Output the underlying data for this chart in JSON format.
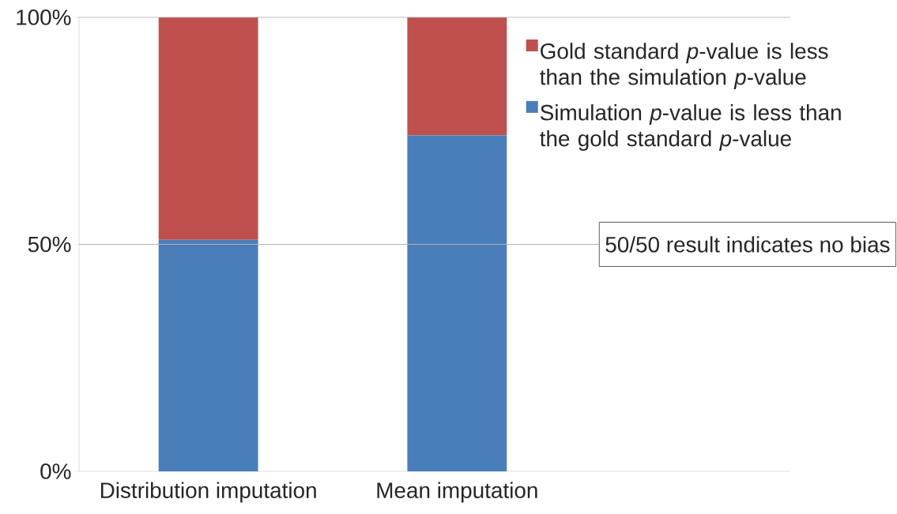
{
  "chart_data": {
    "type": "bar",
    "stacked": true,
    "categories": [
      "Distribution imputation",
      "Mean imputation"
    ],
    "series": [
      {
        "name": "Simulation *p*-value is less than the gold standard *p*-value",
        "color": "#4a7ebb",
        "values": [
          51,
          74
        ]
      },
      {
        "name": "Gold standard *p*-value is less than the simulation *p*-value",
        "color": "#c0504d",
        "values": [
          49,
          26
        ]
      }
    ],
    "ylim": [
      0,
      100
    ],
    "yticks": [
      {
        "value": 0,
        "label": "0%"
      },
      {
        "value": 50,
        "label": "50%"
      },
      {
        "value": 100,
        "label": "100%"
      }
    ],
    "legend": "top right",
    "ref_lines": [
      {
        "axis": "y",
        "value": 50,
        "label": "50/50 result indicates no bias"
      }
    ]
  }
}
